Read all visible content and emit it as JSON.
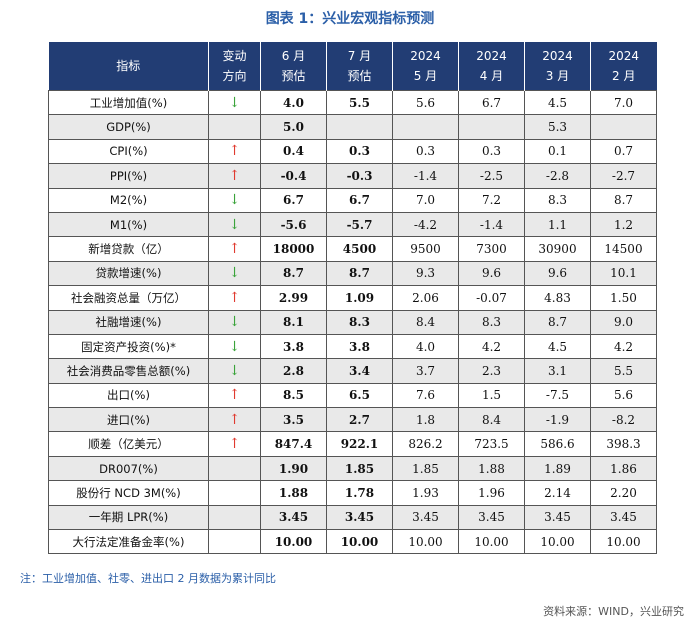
{
  "title": "图表 1：兴业宏观指标预测",
  "header": {
    "indicator": "指标",
    "direction_line1": "变动",
    "direction_line2": "方向",
    "jun_line1": "6 月",
    "jun_line2": "预估",
    "jul_line1": "7 月",
    "jul_line2": "预估",
    "may_line1": "2024",
    "may_line2": "5 月",
    "apr_line1": "2024",
    "apr_line2": "4 月",
    "mar_line1": "2024",
    "mar_line2": "3 月",
    "feb_line1": "2024",
    "feb_line2": "2 月"
  },
  "arrows": {
    "up": "↑",
    "down": "↓"
  },
  "colors": {
    "header_bg": "#223d74",
    "up": "#e03a2f",
    "down": "#3aa33a",
    "title": "#2b5fa8"
  },
  "rows": [
    {
      "name": "工业增加值(%)",
      "dir": "down",
      "jun": "4.0",
      "jul": "5.5",
      "may": "5.6",
      "apr": "6.7",
      "mar": "4.5",
      "feb": "7.0"
    },
    {
      "name": "GDP(%)",
      "dir": "",
      "jun": "5.0",
      "jul": "",
      "may": "",
      "apr": "",
      "mar": "5.3",
      "feb": ""
    },
    {
      "name": "CPI(%)",
      "dir": "up",
      "jun": "0.4",
      "jul": "0.3",
      "may": "0.3",
      "apr": "0.3",
      "mar": "0.1",
      "feb": "0.7"
    },
    {
      "name": "PPI(%)",
      "dir": "up",
      "jun": "-0.4",
      "jul": "-0.3",
      "may": "-1.4",
      "apr": "-2.5",
      "mar": "-2.8",
      "feb": "-2.7"
    },
    {
      "name": "M2(%)",
      "dir": "down",
      "jun": "6.7",
      "jul": "6.7",
      "may": "7.0",
      "apr": "7.2",
      "mar": "8.3",
      "feb": "8.7"
    },
    {
      "name": "M1(%)",
      "dir": "down",
      "jun": "-5.6",
      "jul": "-5.7",
      "may": "-4.2",
      "apr": "-1.4",
      "mar": "1.1",
      "feb": "1.2"
    },
    {
      "name": "新增贷款（亿）",
      "dir": "up",
      "jun": "18000",
      "jul": "4500",
      "may": "9500",
      "apr": "7300",
      "mar": "30900",
      "feb": "14500"
    },
    {
      "name": "贷款增速(%)",
      "dir": "down",
      "jun": "8.7",
      "jul": "8.7",
      "may": "9.3",
      "apr": "9.6",
      "mar": "9.6",
      "feb": "10.1"
    },
    {
      "name": "社会融资总量（万亿）",
      "dir": "up",
      "jun": "2.99",
      "jul": "1.09",
      "may": "2.06",
      "apr": "-0.07",
      "mar": "4.83",
      "feb": "1.50"
    },
    {
      "name": "社融增速(%)",
      "dir": "down",
      "jun": "8.1",
      "jul": "8.3",
      "may": "8.4",
      "apr": "8.3",
      "mar": "8.7",
      "feb": "9.0"
    },
    {
      "name": "固定资产投资(%)*",
      "dir": "down",
      "jun": "3.8",
      "jul": "3.8",
      "may": "4.0",
      "apr": "4.2",
      "mar": "4.5",
      "feb": "4.2"
    },
    {
      "name": "社会消费品零售总额(%)",
      "dir": "down",
      "jun": "2.8",
      "jul": "3.4",
      "may": "3.7",
      "apr": "2.3",
      "mar": "3.1",
      "feb": "5.5"
    },
    {
      "name": "出口(%)",
      "dir": "up",
      "jun": "8.5",
      "jul": "6.5",
      "may": "7.6",
      "apr": "1.5",
      "mar": "-7.5",
      "feb": "5.6"
    },
    {
      "name": "进口(%)",
      "dir": "up",
      "jun": "3.5",
      "jul": "2.7",
      "may": "1.8",
      "apr": "8.4",
      "mar": "-1.9",
      "feb": "-8.2"
    },
    {
      "name": "顺差（亿美元）",
      "dir": "up",
      "jun": "847.4",
      "jul": "922.1",
      "may": "826.2",
      "apr": "723.5",
      "mar": "586.6",
      "feb": "398.3"
    },
    {
      "name": "DR007(%)",
      "dir": "",
      "jun": "1.90",
      "jul": "1.85",
      "may": "1.85",
      "apr": "1.88",
      "mar": "1.89",
      "feb": "1.86"
    },
    {
      "name": "股份行 NCD 3M(%)",
      "dir": "",
      "jun": "1.88",
      "jul": "1.78",
      "may": "1.93",
      "apr": "1.96",
      "mar": "2.14",
      "feb": "2.20"
    },
    {
      "name": "一年期 LPR(%)",
      "dir": "",
      "jun": "3.45",
      "jul": "3.45",
      "may": "3.45",
      "apr": "3.45",
      "mar": "3.45",
      "feb": "3.45"
    },
    {
      "name": "大行法定准备金率(%)",
      "dir": "",
      "jun": "10.00",
      "jul": "10.00",
      "may": "10.00",
      "apr": "10.00",
      "mar": "10.00",
      "feb": "10.00"
    }
  ],
  "note": "注：工业增加值、社零、进出口 2 月数据为累计同比",
  "source": "资料来源：WIND，兴业研究"
}
